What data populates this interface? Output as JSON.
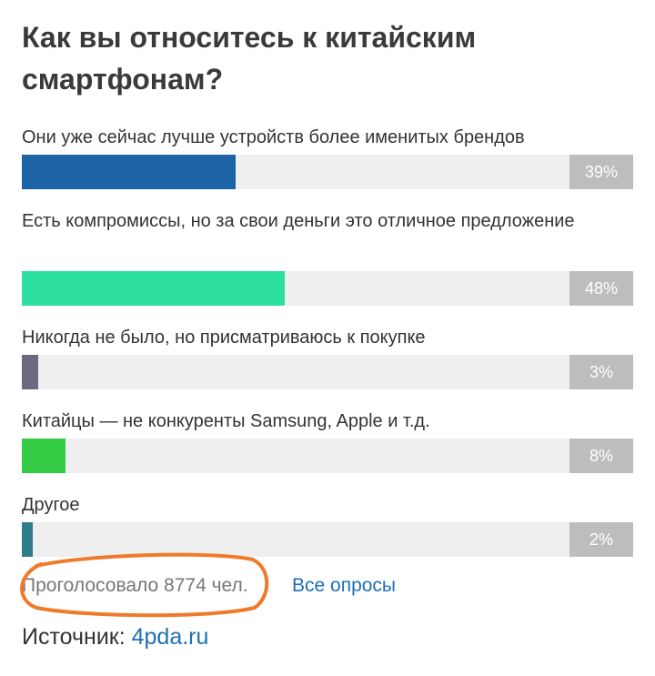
{
  "poll": {
    "title": "Как вы относитесь к китайским смартфонам?",
    "options": [
      {
        "label": "Они уже сейчас лучше устройств более именитых брендов",
        "percent": 39,
        "percent_label": "39%",
        "color": "#1c64a6"
      },
      {
        "label": "Есть компромиссы, но за свои деньги это отличное предложение",
        "percent": 48,
        "percent_label": "48%",
        "color": "#2ee0a0"
      },
      {
        "label": "Никогда не было, но присматриваюсь к покупке",
        "percent": 3,
        "percent_label": "3%",
        "color": "#6a6a80"
      },
      {
        "label": "Китайцы — не конкуренты Samsung, Apple и т.д.",
        "percent": 8,
        "percent_label": "8%",
        "color": "#33cc44"
      },
      {
        "label": "Другое",
        "percent": 2,
        "percent_label": "2%",
        "color": "#2e7d8a"
      }
    ],
    "votes_text": "Проголосовало 8774 чел.",
    "all_polls_label": "Все опросы"
  },
  "source": {
    "prefix": "Источник: ",
    "link": "4pda.ru"
  },
  "annotation": {
    "color": "#f07a2a"
  }
}
